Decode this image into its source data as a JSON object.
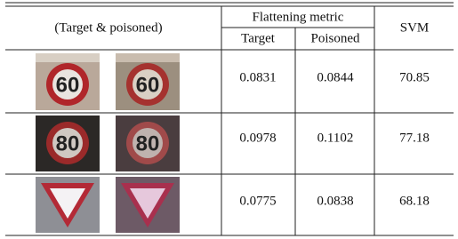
{
  "table": {
    "header": {
      "input": "(Target & poisoned)",
      "group": "Flattening metric",
      "target": "Target",
      "poisoned": "Poisoned",
      "svm": "SVM"
    },
    "rows": [
      {
        "sign_text": "60",
        "target": "0.0831",
        "poisoned": "0.0844",
        "svm": "70.85"
      },
      {
        "sign_text": "80",
        "target": "0.0978",
        "poisoned": "0.1102",
        "svm": "77.18"
      },
      {
        "target": "0.0775",
        "poisoned": "0.0838",
        "svm": "68.18"
      }
    ]
  }
}
